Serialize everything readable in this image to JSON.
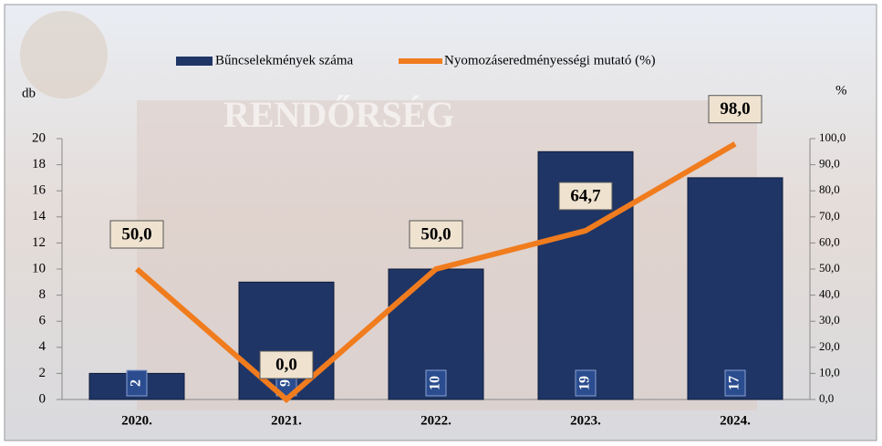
{
  "chart_data": {
    "type": "bar-line",
    "categories": [
      "2020.",
      "2021.",
      "2022.",
      "2023.",
      "2024."
    ],
    "series": [
      {
        "name": "Bűncselekmények száma",
        "color": "#1f3566",
        "type": "bar",
        "values": [
          2,
          9,
          10,
          19,
          17
        ]
      },
      {
        "name": "Nyomozáseredményességi mutató (%)",
        "color": "#f07c1e",
        "type": "line",
        "axis": "y2",
        "values": [
          50.0,
          0.0,
          50.0,
          64.7,
          98.0
        ],
        "value_labels": [
          "50,0",
          "0,0",
          "50,0",
          "64,7",
          "98,0"
        ]
      }
    ],
    "y_label": "db",
    "y2_label": "%",
    "ylim": [
      0,
      20
    ],
    "yticks": [
      0,
      2,
      4,
      6,
      8,
      10,
      12,
      14,
      16,
      18,
      20
    ],
    "y2lim": [
      0,
      100
    ],
    "y2ticks": [
      {
        "value": 0,
        "label": "0,0"
      },
      {
        "value": 10,
        "label": "10,0"
      },
      {
        "value": 20,
        "label": "20,0"
      },
      {
        "value": 30,
        "label": "30,0"
      },
      {
        "value": 40,
        "label": "40,0"
      },
      {
        "value": 50,
        "label": "50,0"
      },
      {
        "value": 60,
        "label": "60,0"
      },
      {
        "value": 70,
        "label": "70,0"
      },
      {
        "value": 80,
        "label": "80,0"
      },
      {
        "value": 90,
        "label": "90,0"
      },
      {
        "value": 100,
        "label": "100,0"
      }
    ]
  }
}
